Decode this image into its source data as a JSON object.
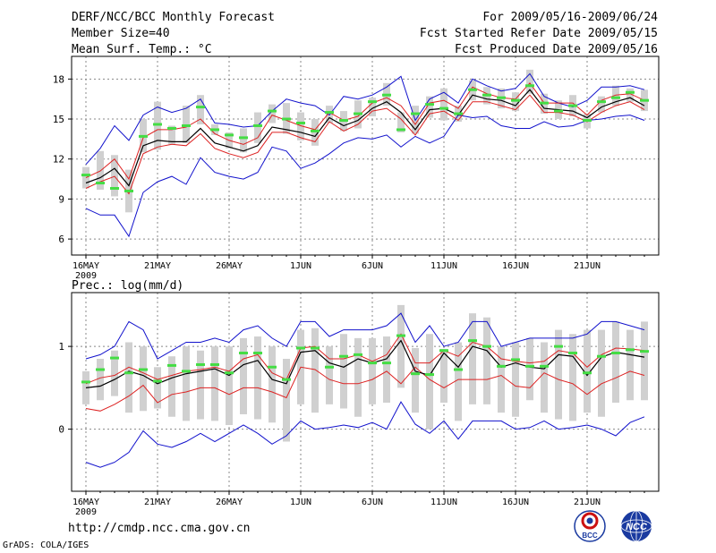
{
  "header": {
    "title": "DERF/NCC/BCC Monthly Forecast",
    "member_size": "Member Size=40",
    "variable": "Mean Surf. Temp.: °C",
    "period": "For 2009/05/16-2009/06/24",
    "started": "Fcst Started Refer Date 2009/05/15",
    "produced": "Fcst Produced Date 2009/05/16"
  },
  "footer": {
    "url": "http://cmdp.ncc.cma.gov.cn",
    "credit": "GrADS: COLA/IGES",
    "logo_bcc": "BCC",
    "logo_ncc": "NCC"
  },
  "colors": {
    "box": "#d0d0d0",
    "median": "#44dd44",
    "mean": "#000000",
    "percentile": "#dd2222",
    "envelope": "#1111cc",
    "grid": "#888888"
  },
  "chart_data": [
    {
      "type": "line",
      "title": "Mean Surf. Temp.: °C",
      "xlabel": "",
      "ylabel": "",
      "x_tick_labels": [
        "16MAY",
        "21MAY",
        "26MAY",
        "1JUN",
        "6JUN",
        "11JUN",
        "16JUN",
        "21JUN"
      ],
      "x_tick_days": [
        1,
        6,
        11,
        16,
        21,
        26,
        31,
        36
      ],
      "x_sublabel": "2009",
      "xlim": [
        0,
        41
      ],
      "ylim": [
        4.8,
        19.7
      ],
      "yticks": [
        6,
        9,
        12,
        15,
        18
      ],
      "ytick_labels": [
        "6",
        "9",
        "12",
        "15",
        "18"
      ],
      "grid": true,
      "series": [
        {
          "name": "max",
          "values": [
            8.3,
            7.8,
            7.8,
            6.2,
            9.5,
            10.3,
            10.7,
            10.1,
            12.1,
            11.0,
            10.7,
            10.5,
            11.0,
            12.9,
            12.6,
            11.3,
            11.7,
            12.4,
            13.2,
            13.6,
            13.5,
            13.8,
            12.9,
            13.7,
            13.2,
            13.7,
            15.3,
            15.1,
            15.2,
            14.5,
            14.3,
            14.3,
            14.8,
            14.4,
            14.5,
            14.9,
            15.0,
            15.2,
            15.3,
            14.9
          ]
        },
        {
          "name": "min",
          "values": [
            11.6,
            12.8,
            14.5,
            13.4,
            15.3,
            15.9,
            15.5,
            15.8,
            16.5,
            14.7,
            14.6,
            14.4,
            14.5,
            15.6,
            16.5,
            16.2,
            16.0,
            15.3,
            16.7,
            16.5,
            16.8,
            17.4,
            18.2,
            14.9,
            16.5,
            17.0,
            16.2,
            18.0,
            17.5,
            17.1,
            17.3,
            18.4,
            16.7,
            16.2,
            15.9,
            16.4,
            17.4,
            17.4,
            17.5,
            17.2
          ]
        },
        {
          "name": "p25",
          "values": [
            9.8,
            10.3,
            10.7,
            9.4,
            12.4,
            12.9,
            13.1,
            13.0,
            13.9,
            12.8,
            12.4,
            12.1,
            12.5,
            14.0,
            14.0,
            13.6,
            13.3,
            14.8,
            14.1,
            14.6,
            15.6,
            15.8,
            15.0,
            13.8,
            15.4,
            15.6,
            14.9,
            16.3,
            16.3,
            16.0,
            15.7,
            16.8,
            15.5,
            15.5,
            15.3,
            14.8,
            15.5,
            16.0,
            16.3,
            15.7
          ]
        },
        {
          "name": "mean",
          "values": [
            10.2,
            10.6,
            11.3,
            10.0,
            13.0,
            13.4,
            13.3,
            13.3,
            14.3,
            13.2,
            12.9,
            12.6,
            13.0,
            14.4,
            14.2,
            14.0,
            13.7,
            15.1,
            14.5,
            14.9,
            15.8,
            16.3,
            15.5,
            14.2,
            15.7,
            15.8,
            15.3,
            16.8,
            16.5,
            16.4,
            16.0,
            17.2,
            15.8,
            15.7,
            15.6,
            15.1,
            15.9,
            16.3,
            16.6,
            16.0
          ]
        },
        {
          "name": "p75",
          "values": [
            10.6,
            11.1,
            12.0,
            10.5,
            13.6,
            14.2,
            14.2,
            14.4,
            15.0,
            13.9,
            13.4,
            13.1,
            13.6,
            15.3,
            14.9,
            14.5,
            14.2,
            15.5,
            14.9,
            15.2,
            16.2,
            16.6,
            16.0,
            14.6,
            16.2,
            16.4,
            15.8,
            17.4,
            16.9,
            16.6,
            16.5,
            17.7,
            16.2,
            16.2,
            16.2,
            15.3,
            16.4,
            16.8,
            16.9,
            16.4
          ]
        },
        {
          "name": "median",
          "values": [
            10.8,
            10.2,
            9.8,
            9.6,
            13.7,
            14.6,
            14.3,
            14.5,
            15.9,
            14.2,
            13.8,
            13.6,
            14.5,
            15.6,
            15.0,
            14.7,
            14.1,
            15.5,
            14.9,
            15.4,
            16.3,
            16.8,
            14.2,
            15.4,
            16.1,
            15.8,
            15.4,
            17.2,
            16.8,
            16.6,
            16.4,
            17.5,
            16.2,
            15.6,
            16.0,
            14.9,
            16.3,
            16.6,
            17.0,
            16.4
          ]
        },
        {
          "name": "box_low",
          "values": [
            9.8,
            9.7,
            9.2,
            8.0,
            12.5,
            12.7,
            13.1,
            13.2,
            14.6,
            13.8,
            12.8,
            12.5,
            13.2,
            14.7,
            13.9,
            13.4,
            13.0,
            14.7,
            14.1,
            14.3,
            15.2,
            16.0,
            14.0,
            13.9,
            15.1,
            14.9,
            14.8,
            16.4,
            16.1,
            15.8,
            15.6,
            16.9,
            15.4,
            15.0,
            15.2,
            14.3,
            15.5,
            16.0,
            16.3,
            15.6
          ]
        },
        {
          "name": "box_high",
          "values": [
            11.4,
            12.6,
            12.3,
            11.2,
            15.0,
            16.3,
            14.5,
            16.0,
            16.8,
            14.6,
            14.0,
            14.3,
            15.5,
            16.1,
            16.2,
            15.5,
            15.0,
            16.0,
            15.6,
            16.4,
            16.6,
            17.7,
            15.5,
            16.0,
            16.7,
            17.3,
            16.0,
            17.9,
            17.4,
            17.3,
            17.0,
            18.7,
            16.9,
            16.4,
            16.8,
            15.4,
            16.7,
            17.5,
            17.3,
            17.2
          ]
        }
      ]
    },
    {
      "type": "line",
      "title": "Prec.: log(mm/d)",
      "xlabel": "",
      "ylabel": "",
      "x_tick_labels": [
        "16MAY",
        "21MAY",
        "26MAY",
        "1JUN",
        "6JUN",
        "11JUN",
        "16JUN",
        "21JUN"
      ],
      "x_tick_days": [
        1,
        6,
        11,
        16,
        21,
        26,
        31,
        36
      ],
      "x_sublabel": "2009",
      "xlim": [
        0,
        41
      ],
      "ylim": [
        -0.75,
        1.65
      ],
      "yticks": [
        0,
        1
      ],
      "ytick_labels": [
        "0",
        "1"
      ],
      "grid": true,
      "series": [
        {
          "name": "max",
          "values": [
            -0.4,
            -0.46,
            -0.4,
            -0.28,
            -0.02,
            -0.18,
            -0.22,
            -0.15,
            -0.05,
            -0.15,
            -0.05,
            0.05,
            -0.05,
            -0.18,
            -0.08,
            0.1,
            0.0,
            0.02,
            0.05,
            0.02,
            0.08,
            0.0,
            0.33,
            0.06,
            -0.05,
            0.1,
            -0.12,
            0.1,
            0.1,
            0.1,
            0.0,
            0.02,
            0.1,
            0.0,
            0.02,
            0.05,
            0.0,
            -0.08,
            0.08,
            0.15
          ]
        },
        {
          "name": "min",
          "values": [
            0.85,
            0.9,
            1.0,
            1.3,
            1.2,
            0.85,
            0.95,
            1.05,
            1.05,
            1.1,
            1.05,
            1.2,
            1.25,
            1.1,
            1.0,
            1.3,
            1.3,
            1.12,
            1.2,
            1.2,
            1.2,
            1.25,
            1.4,
            1.05,
            1.25,
            1.0,
            1.05,
            1.3,
            1.3,
            1.0,
            1.05,
            1.1,
            1.1,
            1.1,
            1.1,
            1.15,
            1.3,
            1.3,
            1.25,
            1.2
          ]
        },
        {
          "name": "p25",
          "values": [
            0.25,
            0.22,
            0.3,
            0.4,
            0.53,
            0.32,
            0.42,
            0.45,
            0.5,
            0.5,
            0.42,
            0.5,
            0.5,
            0.45,
            0.38,
            0.75,
            0.72,
            0.6,
            0.55,
            0.55,
            0.6,
            0.7,
            0.55,
            0.75,
            0.6,
            0.5,
            0.6,
            0.6,
            0.6,
            0.65,
            0.52,
            0.5,
            0.68,
            0.6,
            0.55,
            0.42,
            0.55,
            0.62,
            0.7,
            0.65
          ]
        },
        {
          "name": "mean",
          "values": [
            0.5,
            0.52,
            0.6,
            0.7,
            0.65,
            0.55,
            0.62,
            0.67,
            0.7,
            0.73,
            0.65,
            0.78,
            0.83,
            0.6,
            0.55,
            0.93,
            0.95,
            0.8,
            0.75,
            0.85,
            0.8,
            0.85,
            1.07,
            0.7,
            0.65,
            0.92,
            0.75,
            1.0,
            0.95,
            0.75,
            0.8,
            0.75,
            0.73,
            0.9,
            0.88,
            0.65,
            0.87,
            0.93,
            0.9,
            0.87
          ]
        },
        {
          "name": "p75",
          "values": [
            0.55,
            0.62,
            0.65,
            0.75,
            0.68,
            0.6,
            0.65,
            0.7,
            0.72,
            0.75,
            0.7,
            0.85,
            0.9,
            0.68,
            0.6,
            0.98,
            1.0,
            0.85,
            0.85,
            0.9,
            0.82,
            0.9,
            1.15,
            0.8,
            0.8,
            0.95,
            0.88,
            1.05,
            1.0,
            0.85,
            0.82,
            0.8,
            0.82,
            0.95,
            0.92,
            0.75,
            0.9,
            0.98,
            0.97,
            0.95
          ]
        },
        {
          "name": "median",
          "values": [
            0.57,
            0.72,
            0.86,
            0.68,
            0.72,
            0.58,
            0.77,
            0.7,
            0.78,
            0.78,
            0.68,
            0.92,
            0.92,
            0.75,
            0.6,
            0.98,
            0.98,
            0.75,
            0.88,
            0.9,
            0.8,
            0.8,
            1.13,
            0.67,
            0.66,
            0.95,
            0.72,
            1.07,
            1.0,
            0.76,
            0.84,
            0.76,
            0.76,
            1.0,
            0.92,
            0.68,
            0.88,
            0.92,
            0.96,
            0.94
          ]
        },
        {
          "name": "box_low",
          "values": [
            0.3,
            0.35,
            0.4,
            0.2,
            0.22,
            0.25,
            0.15,
            0.1,
            0.12,
            0.1,
            0.05,
            0.18,
            0.12,
            0.08,
            -0.15,
            0.3,
            0.2,
            0.3,
            0.25,
            0.15,
            0.3,
            0.32,
            0.5,
            0.2,
            0.0,
            0.32,
            0.1,
            0.3,
            0.3,
            0.2,
            0.15,
            0.35,
            0.2,
            0.12,
            0.1,
            0.2,
            0.15,
            0.32,
            0.35,
            0.35
          ]
        },
        {
          "name": "box_high",
          "values": [
            0.7,
            0.85,
            0.95,
            1.05,
            1.0,
            0.75,
            0.88,
            1.0,
            0.95,
            1.0,
            1.0,
            1.1,
            1.12,
            1.0,
            0.85,
            1.2,
            1.22,
            1.0,
            1.15,
            1.1,
            1.1,
            1.12,
            1.5,
            0.98,
            1.15,
            0.97,
            1.05,
            1.4,
            1.35,
            1.0,
            1.05,
            1.1,
            1.05,
            1.2,
            1.15,
            1.2,
            1.2,
            1.3,
            1.2,
            1.3
          ]
        }
      ]
    }
  ]
}
